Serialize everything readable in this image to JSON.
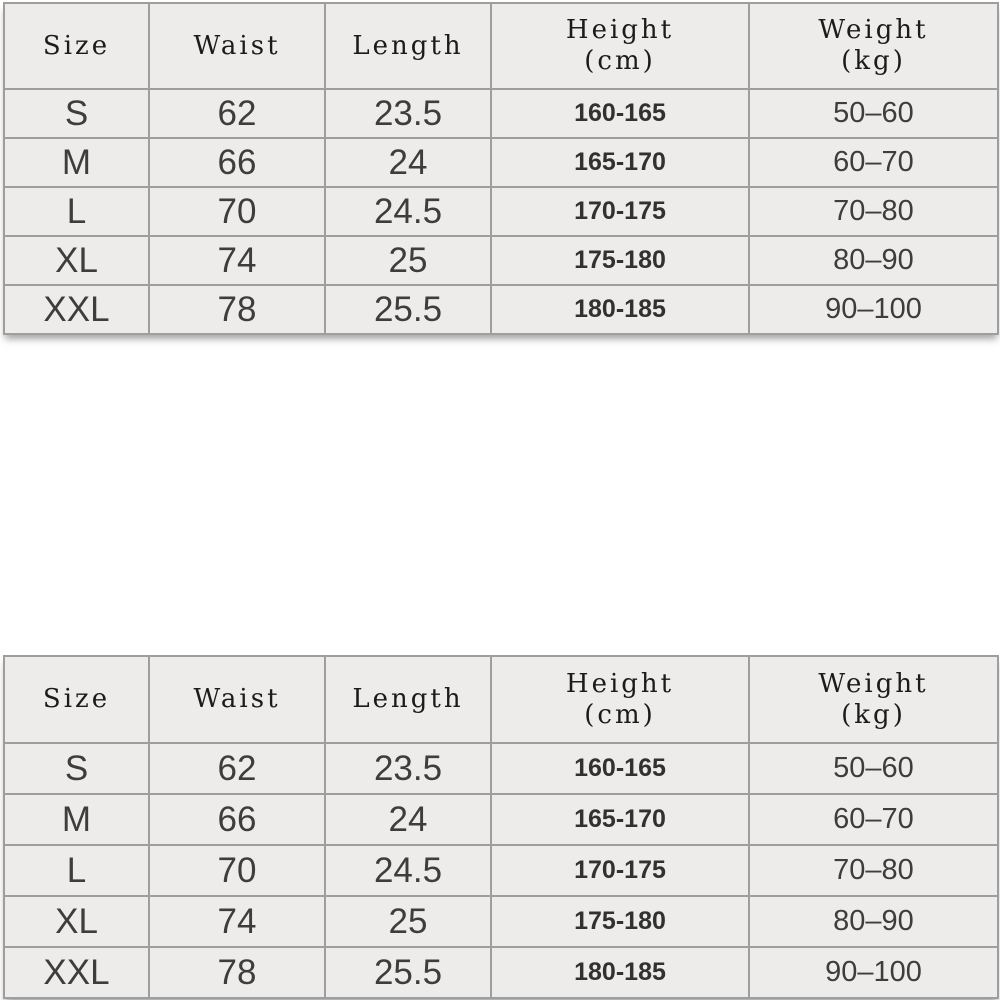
{
  "page": {
    "background_color": "#ffffff",
    "cell_background_color": "#edecea",
    "border_color": "#9e9e9e",
    "header_text_color": "#1b1b1b",
    "data_text_color": "#3d3d3d"
  },
  "size_chart": {
    "headers": {
      "size": "Size",
      "waist": "Waist",
      "length": "Length",
      "height_line1": "Height",
      "height_line2": "(cm)",
      "weight_line1": "Weight",
      "weight_line2": "(kg)"
    },
    "rows": [
      {
        "size": "S",
        "waist": "62",
        "length": "23.5",
        "height": "160-165",
        "weight": "50–60"
      },
      {
        "size": "M",
        "waist": "66",
        "length": "24",
        "height": "165-170",
        "weight": "60–70"
      },
      {
        "size": "L",
        "waist": "70",
        "length": "24.5",
        "height": "170-175",
        "weight": "70–80"
      },
      {
        "size": "XL",
        "waist": "74",
        "length": "25",
        "height": "175-180",
        "weight": "80–90"
      },
      {
        "size": "XXL",
        "waist": "78",
        "length": "25.5",
        "height": "180-185",
        "weight": "90–100"
      }
    ]
  },
  "chart_data": {
    "type": "table",
    "title": "",
    "columns": [
      "Size",
      "Waist",
      "Length",
      "Height (cm)",
      "Weight (kg)"
    ],
    "rows": [
      [
        "S",
        62,
        23.5,
        "160-165",
        "50-60"
      ],
      [
        "M",
        66,
        24,
        "165-170",
        "60-70"
      ],
      [
        "L",
        70,
        24.5,
        "170-175",
        "70-80"
      ],
      [
        "XL",
        74,
        25,
        "175-180",
        "80-90"
      ],
      [
        "XXL",
        78,
        25.5,
        "180-185",
        "90-100"
      ]
    ],
    "layout_hints": {
      "table_repeated_twice_vertically": true,
      "height_values_bold": true,
      "grid": "full borders, light gray scanned background"
    }
  }
}
